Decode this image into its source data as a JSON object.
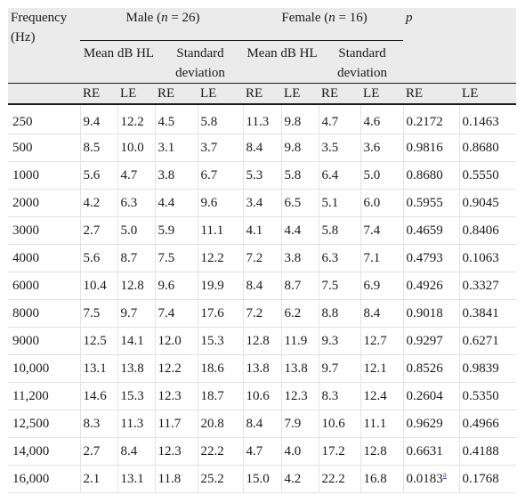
{
  "header": {
    "frequency_label": "Frequency (Hz)",
    "male_label": "Male (n = 26)",
    "female_label": "Female (n = 16)",
    "p_label": "p",
    "mean_label": "Mean dB HL",
    "sd_label": "Standard deviation",
    "re_label": "RE",
    "le_label": "LE"
  },
  "rows": [
    {
      "freq": "250",
      "m_mean_re": "9.4",
      "m_mean_le": "12.2",
      "m_sd_re": "4.5",
      "m_sd_le": "5.8",
      "f_mean_re": "11.3",
      "f_mean_le": "9.8",
      "f_sd_re": "4.7",
      "f_sd_le": "4.6",
      "p_re": "0.2172",
      "p_le": "0.1463"
    },
    {
      "freq": "500",
      "m_mean_re": "8.5",
      "m_mean_le": "10.0",
      "m_sd_re": "3.1",
      "m_sd_le": "3.7",
      "f_mean_re": "8.4",
      "f_mean_le": "9.8",
      "f_sd_re": "3.5",
      "f_sd_le": "3.6",
      "p_re": "0.9816",
      "p_le": "0.8680"
    },
    {
      "freq": "1000",
      "m_mean_re": "5.6",
      "m_mean_le": "4.7",
      "m_sd_re": "3.8",
      "m_sd_le": "6.7",
      "f_mean_re": "5.3",
      "f_mean_le": "5.8",
      "f_sd_re": "6.4",
      "f_sd_le": "5.0",
      "p_re": "0.8680",
      "p_le": "0.5550"
    },
    {
      "freq": "2000",
      "m_mean_re": "4.2",
      "m_mean_le": "6.3",
      "m_sd_re": "4.4",
      "m_sd_le": "9.6",
      "f_mean_re": "3.4",
      "f_mean_le": "6.5",
      "f_sd_re": "5.1",
      "f_sd_le": "6.0",
      "p_re": "0.5955",
      "p_le": "0.9045"
    },
    {
      "freq": "3000",
      "m_mean_re": "2.7",
      "m_mean_le": "5.0",
      "m_sd_re": "5.9",
      "m_sd_le": "11.1",
      "f_mean_re": "4.1",
      "f_mean_le": "4.4",
      "f_sd_re": "5.8",
      "f_sd_le": "7.4",
      "p_re": "0.4659",
      "p_le": "0.8406"
    },
    {
      "freq": "4000",
      "m_mean_re": "5.6",
      "m_mean_le": "8.7",
      "m_sd_re": "7.5",
      "m_sd_le": "12.2",
      "f_mean_re": "7.2",
      "f_mean_le": "3.8",
      "f_sd_re": "6.3",
      "f_sd_le": "7.1",
      "p_re": "0.4793",
      "p_le": "0.1063"
    },
    {
      "freq": "6000",
      "m_mean_re": "10.4",
      "m_mean_le": "12.8",
      "m_sd_re": "9.6",
      "m_sd_le": "19.9",
      "f_mean_re": "8.4",
      "f_mean_le": "8.7",
      "f_sd_re": "7.5",
      "f_sd_le": "6.9",
      "p_re": "0.4926",
      "p_le": "0.3327"
    },
    {
      "freq": "8000",
      "m_mean_re": "7.5",
      "m_mean_le": "9.7",
      "m_sd_re": "7.4",
      "m_sd_le": "17.6",
      "f_mean_re": "7.2",
      "f_mean_le": "6.2",
      "f_sd_re": "8.8",
      "f_sd_le": "8.4",
      "p_re": "0.9018",
      "p_le": "0.3841"
    },
    {
      "freq": "9000",
      "m_mean_re": "12.5",
      "m_mean_le": "14.1",
      "m_sd_re": "12.0",
      "m_sd_le": "15.3",
      "f_mean_re": "12.8",
      "f_mean_le": "11.9",
      "f_sd_re": "9.3",
      "f_sd_le": "12.7",
      "p_re": "0.9297",
      "p_le": "0.6271"
    },
    {
      "freq": "10,000",
      "m_mean_re": "13.1",
      "m_mean_le": "13.8",
      "m_sd_re": "12.2",
      "m_sd_le": "18.6",
      "f_mean_re": "13.8",
      "f_mean_le": "13.8",
      "f_sd_re": "9.7",
      "f_sd_le": "12.1",
      "p_re": "0.8526",
      "p_le": "0.9839"
    },
    {
      "freq": "11,200",
      "m_mean_re": "14.6",
      "m_mean_le": "15.3",
      "m_sd_re": "12.3",
      "m_sd_le": "18.7",
      "f_mean_re": "10.6",
      "f_mean_le": "12.3",
      "f_sd_re": "8.3",
      "f_sd_le": "12.4",
      "p_re": "0.2604",
      "p_le": "0.5350"
    },
    {
      "freq": "12,500",
      "m_mean_re": "8.3",
      "m_mean_le": "11.3",
      "m_sd_re": "11.7",
      "m_sd_le": "20.8",
      "f_mean_re": "8.4",
      "f_mean_le": "7.9",
      "f_sd_re": "10.6",
      "f_sd_le": "11.1",
      "p_re": "0.9629",
      "p_le": "0.4966"
    },
    {
      "freq": "14,000",
      "m_mean_re": "2.7",
      "m_mean_le": "8.4",
      "m_sd_re": "12.3",
      "m_sd_le": "22.2",
      "f_mean_re": "4.7",
      "f_mean_le": "4.0",
      "f_sd_re": "17.2",
      "f_sd_le": "12.8",
      "p_re": "0.6631",
      "p_le": "0.4188"
    },
    {
      "freq": "16,000",
      "m_mean_re": "2.1",
      "m_mean_le": "13.1",
      "m_sd_re": "11.8",
      "m_sd_le": "25.2",
      "f_mean_re": "15.0",
      "f_mean_le": "4.2",
      "f_sd_re": "22.2",
      "f_sd_le": "16.8",
      "p_re": "0.0183",
      "p_re_footnote": "a",
      "p_le": "0.1768"
    }
  ]
}
